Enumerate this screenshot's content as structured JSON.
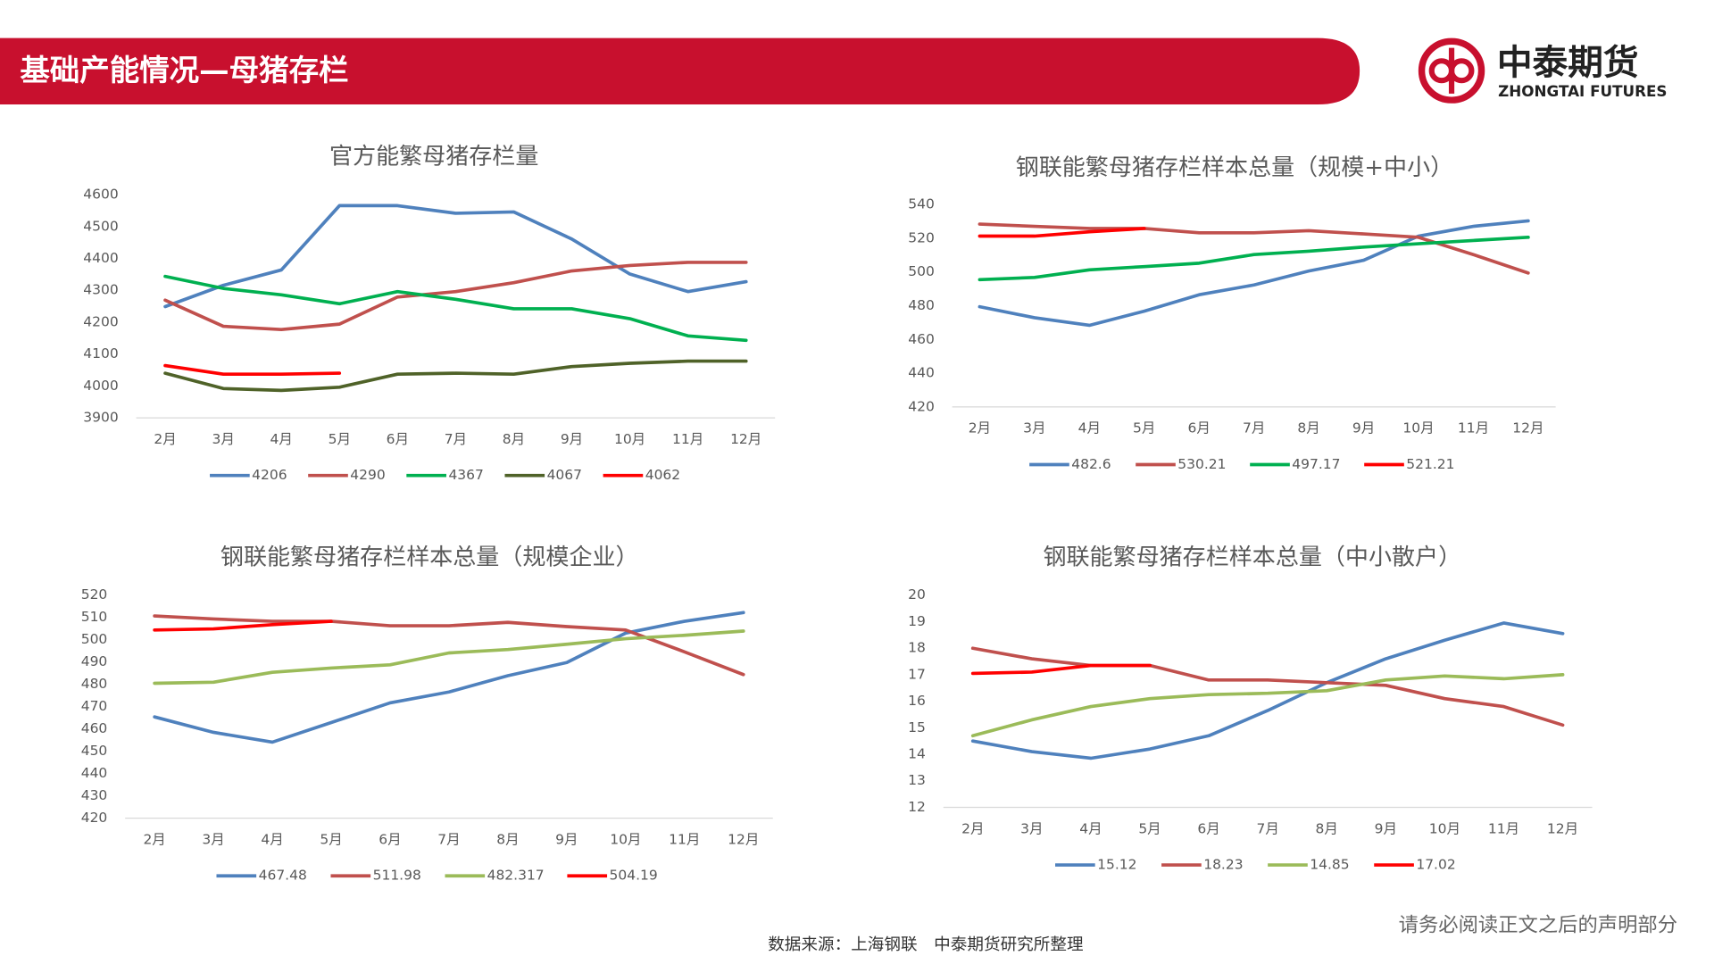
{
  "header": {
    "title": "基础产能情况—母猪存栏",
    "logo_cn": "中泰期货",
    "logo_en": "ZHONGTAI FUTURES"
  },
  "footer": {
    "source": "数据来源：上海钢联　中泰期货研究所整理",
    "disclaimer": "请务必阅读正文之后的声明部分"
  },
  "chart_data": [
    {
      "type": "line",
      "title": "官方能繁母猪存栏量",
      "categories": [
        "2月",
        "3月",
        "4月",
        "5月",
        "6月",
        "7月",
        "8月",
        "9月",
        "10月",
        "11月",
        "12月"
      ],
      "ylim": [
        3900,
        4600
      ],
      "yticks": [
        3900,
        4000,
        4100,
        4200,
        4300,
        4400,
        4500,
        4600
      ],
      "series": [
        {
          "name": "4206",
          "color": "#4f81bd",
          "values": [
            4249,
            4316,
            4364,
            4566,
            4566,
            4542,
            4546,
            4461,
            4351,
            4296,
            4327
          ]
        },
        {
          "name": "4290",
          "color": "#c0504d",
          "values": [
            4269,
            4187,
            4177,
            4194,
            4279,
            4296,
            4324,
            4361,
            4378,
            4388,
            4388
          ]
        },
        {
          "name": "4367",
          "color": "#00b050",
          "values": [
            4344,
            4306,
            4286,
            4258,
            4296,
            4272,
            4242,
            4242,
            4211,
            4157,
            4143
          ]
        },
        {
          "name": "4067",
          "color": "#4f6228",
          "values": [
            4040,
            3992,
            3986,
            3996,
            4037,
            4040,
            4037,
            4061,
            4071,
            4078,
            4078
          ]
        },
        {
          "name": "4062",
          "color": "#ff0000",
          "values": [
            4064,
            4037,
            4037,
            4040,
            null,
            null,
            null,
            null,
            null,
            null,
            null
          ]
        }
      ]
    },
    {
      "type": "line",
      "title": "钢联能繁母猪存栏样本总量（规模+中小）",
      "categories": [
        "2月",
        "3月",
        "4月",
        "5月",
        "6月",
        "7月",
        "8月",
        "9月",
        "10月",
        "11月",
        "12月"
      ],
      "ylim": [
        420,
        540
      ],
      "yticks": [
        420,
        440,
        460,
        480,
        500,
        520,
        540
      ],
      "series": [
        {
          "name": "482.6",
          "color": "#4f81bd",
          "values": [
            479.4,
            472.9,
            468.4,
            476.8,
            486.5,
            492.3,
            500.6,
            507,
            521.3,
            527.1,
            530.3
          ]
        },
        {
          "name": "530.21",
          "color": "#c0504d",
          "values": [
            528.4,
            527.1,
            525.8,
            525.8,
            523.2,
            523.2,
            524.5,
            522.6,
            520.6,
            510.3,
            499.4
          ]
        },
        {
          "name": "497.17",
          "color": "#00b050",
          "values": [
            495.5,
            496.8,
            501.3,
            503.2,
            505.2,
            510.3,
            512.3,
            514.8,
            516.8,
            518.7,
            520.6
          ]
        },
        {
          "name": "521.21",
          "color": "#ff0000",
          "values": [
            521.3,
            521.3,
            523.9,
            525.8,
            null,
            null,
            null,
            null,
            null,
            null,
            null
          ]
        }
      ]
    },
    {
      "type": "line",
      "title": "钢联能繁母猪存栏样本总量（规模企业）",
      "categories": [
        "2月",
        "3月",
        "4月",
        "5月",
        "6月",
        "7月",
        "8月",
        "9月",
        "10月",
        "11月",
        "12月"
      ],
      "ylim": [
        420,
        520
      ],
      "yticks": [
        420,
        430,
        440,
        450,
        460,
        470,
        480,
        490,
        500,
        510,
        520
      ],
      "series": [
        {
          "name": "467.48",
          "color": "#4f81bd",
          "values": [
            465.4,
            458.5,
            454.1,
            462.9,
            471.7,
            476.6,
            483.9,
            489.8,
            503,
            508.3,
            512.2
          ]
        },
        {
          "name": "511.98",
          "color": "#c0504d",
          "values": [
            510.7,
            509.3,
            508.3,
            508.3,
            506.3,
            506.3,
            507.8,
            505.9,
            504.4,
            494.6,
            484.4
          ]
        },
        {
          "name": "482.317",
          "color": "#9bbb59",
          "values": [
            480.5,
            481,
            485.4,
            487.3,
            488.8,
            494.1,
            495.6,
            498,
            500.5,
            502,
            503.9
          ]
        },
        {
          "name": "504.19",
          "color": "#ff0000",
          "values": [
            504.4,
            504.9,
            506.8,
            508.3,
            null,
            null,
            null,
            null,
            null,
            null,
            null
          ]
        }
      ]
    },
    {
      "type": "line",
      "title": "钢联能繁母猪存栏样本总量（中小散户）",
      "categories": [
        "2月",
        "3月",
        "4月",
        "5月",
        "6月",
        "7月",
        "8月",
        "9月",
        "10月",
        "11月",
        "12月"
      ],
      "ylim": [
        12,
        20
      ],
      "yticks": [
        12,
        13,
        14,
        15,
        16,
        17,
        18,
        19,
        20
      ],
      "series": [
        {
          "name": "15.12",
          "color": "#4f81bd",
          "values": [
            14.5,
            14.1,
            13.85,
            14.2,
            14.7,
            15.65,
            16.7,
            17.6,
            18.3,
            18.95,
            18.55
          ]
        },
        {
          "name": "18.23",
          "color": "#c0504d",
          "values": [
            18.0,
            17.6,
            17.35,
            17.35,
            16.8,
            16.8,
            16.7,
            16.6,
            16.1,
            15.8,
            15.1
          ]
        },
        {
          "name": "14.85",
          "color": "#9bbb59",
          "values": [
            14.7,
            15.3,
            15.8,
            16.1,
            16.25,
            16.3,
            16.4,
            16.8,
            16.95,
            16.85,
            17.0
          ]
        },
        {
          "name": "17.02",
          "color": "#ff0000",
          "values": [
            17.05,
            17.1,
            17.35,
            17.35,
            null,
            null,
            null,
            null,
            null,
            null,
            null
          ]
        }
      ]
    }
  ]
}
